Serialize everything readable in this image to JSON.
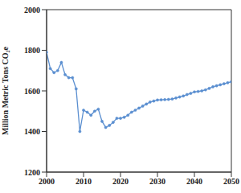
{
  "chart_data": {
    "type": "line",
    "y_label": "Million Metric Tons CO₂e",
    "x": [
      2000,
      2001,
      2002,
      2003,
      2004,
      2005,
      2006,
      2007,
      2008,
      2009,
      2010,
      2011,
      2012,
      2013,
      2014,
      2015,
      2016,
      2017,
      2018,
      2019,
      2020,
      2021,
      2022,
      2023,
      2024,
      2025,
      2026,
      2027,
      2028,
      2029,
      2030,
      2031,
      2032,
      2033,
      2034,
      2035,
      2036,
      2037,
      2038,
      2039,
      2040,
      2041,
      2042,
      2043,
      2044,
      2045,
      2046,
      2047,
      2048,
      2049,
      2050
    ],
    "values": [
      1790,
      1710,
      1690,
      1700,
      1740,
      1680,
      1665,
      1665,
      1610,
      1400,
      1505,
      1495,
      1480,
      1500,
      1510,
      1450,
      1420,
      1430,
      1445,
      1465,
      1465,
      1470,
      1480,
      1495,
      1505,
      1515,
      1525,
      1535,
      1545,
      1550,
      1555,
      1556,
      1557,
      1558,
      1560,
      1565,
      1570,
      1575,
      1582,
      1588,
      1595,
      1597,
      1600,
      1605,
      1612,
      1620,
      1625,
      1630,
      1635,
      1640,
      1645
    ],
    "color": "#5b8fd0",
    "marker": "circle",
    "line_style": "solid",
    "xlim": [
      2000,
      2050
    ],
    "xticks": [
      2000,
      2010,
      2020,
      2030,
      2040,
      2050
    ],
    "ylim": [
      1200,
      2000
    ],
    "yticks": [
      1200,
      1400,
      1600,
      1800,
      2000
    ],
    "grid": false
  }
}
